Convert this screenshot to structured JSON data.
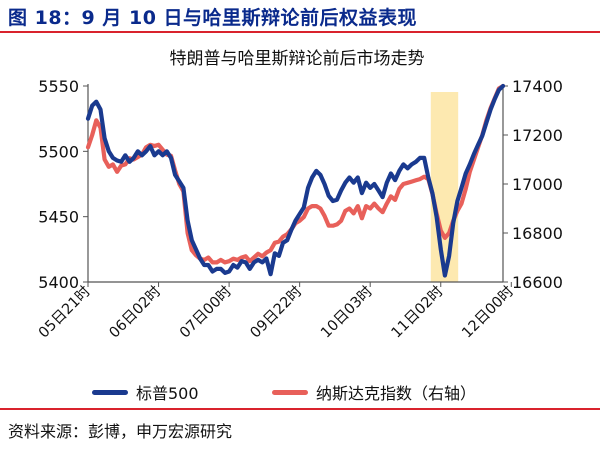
{
  "figure": {
    "title": "图 18：9 月 10 日与哈里斯辩论前后权益表现",
    "source": "资料来源：彭博，申万宏源研究"
  },
  "chart_data": {
    "type": "line",
    "title": "特朗普与哈里斯辩论前后市场走势",
    "x_tick_labels": [
      "05日21时",
      "06日02时",
      "07日00时",
      "09日22时",
      "10日03时",
      "11日02时",
      "12日00时"
    ],
    "x_range": [
      0,
      100
    ],
    "x_tick_positions": [
      0,
      17,
      34,
      51,
      68,
      85,
      102
    ],
    "y_left": {
      "ticks": [
        5400,
        5450,
        5500,
        5550
      ],
      "range": [
        5400,
        5550
      ]
    },
    "y_right": {
      "ticks": [
        16600,
        16800,
        17000,
        17200,
        17400
      ],
      "range": [
        16600,
        17400
      ]
    },
    "highlight_range": [
      82.6,
      89.2
    ],
    "legend_position": "bottom",
    "colors": {
      "sp500": "#1a3a8f",
      "nasdaq": "#e8605a",
      "highlight": "#fde9b0",
      "axis": "#555555",
      "text": "#0a2a8c",
      "rule": "#d9232d"
    },
    "series": [
      {
        "name": "标普500",
        "axis": "left",
        "points": [
          [
            0,
            5525
          ],
          [
            1,
            5535
          ],
          [
            2,
            5538
          ],
          [
            3,
            5532
          ],
          [
            4,
            5510
          ],
          [
            5,
            5500
          ],
          [
            6,
            5495
          ],
          [
            7,
            5493
          ],
          [
            8,
            5492
          ],
          [
            9,
            5497
          ],
          [
            10,
            5492
          ],
          [
            11,
            5495
          ],
          [
            12,
            5500
          ],
          [
            13,
            5497
          ],
          [
            14,
            5500
          ],
          [
            15,
            5504
          ],
          [
            16,
            5497
          ],
          [
            17,
            5500
          ],
          [
            18,
            5497
          ],
          [
            19,
            5500
          ],
          [
            20,
            5495
          ],
          [
            21,
            5482
          ],
          [
            22,
            5477
          ],
          [
            23,
            5472
          ],
          [
            24,
            5447
          ],
          [
            25,
            5432
          ],
          [
            26,
            5425
          ],
          [
            27,
            5418
          ],
          [
            28,
            5413
          ],
          [
            29,
            5413
          ],
          [
            30,
            5408
          ],
          [
            31,
            5410
          ],
          [
            32,
            5410
          ],
          [
            33,
            5407
          ],
          [
            34,
            5408
          ],
          [
            35,
            5413
          ],
          [
            36,
            5411
          ],
          [
            37,
            5416
          ],
          [
            38,
            5415
          ],
          [
            39,
            5410
          ],
          [
            40,
            5415
          ],
          [
            41,
            5417
          ],
          [
            42,
            5415
          ],
          [
            43,
            5418
          ],
          [
            44,
            5406
          ],
          [
            45,
            5422
          ],
          [
            46,
            5420
          ],
          [
            47,
            5430
          ],
          [
            48,
            5432
          ],
          [
            49,
            5440
          ],
          [
            50,
            5447
          ],
          [
            51,
            5452
          ],
          [
            52,
            5457
          ],
          [
            53,
            5472
          ],
          [
            54,
            5480
          ],
          [
            55,
            5485
          ],
          [
            56,
            5482
          ],
          [
            57,
            5475
          ],
          [
            58,
            5466
          ],
          [
            59,
            5462
          ],
          [
            60,
            5463
          ],
          [
            61,
            5470
          ],
          [
            62,
            5476
          ],
          [
            63,
            5480
          ],
          [
            64,
            5476
          ],
          [
            65,
            5480
          ],
          [
            66,
            5468
          ],
          [
            67,
            5476
          ],
          [
            68,
            5472
          ],
          [
            69,
            5475
          ],
          [
            70,
            5470
          ],
          [
            71,
            5465
          ],
          [
            72,
            5476
          ],
          [
            73,
            5483
          ],
          [
            74,
            5478
          ],
          [
            75,
            5485
          ],
          [
            76,
            5490
          ],
          [
            77,
            5487
          ],
          [
            78,
            5490
          ],
          [
            79,
            5492
          ],
          [
            80,
            5495
          ],
          [
            81,
            5495
          ],
          [
            82,
            5480
          ],
          [
            83,
            5468
          ],
          [
            84,
            5450
          ],
          [
            85,
            5425
          ],
          [
            86,
            5405
          ],
          [
            87,
            5420
          ],
          [
            88,
            5445
          ],
          [
            89,
            5462
          ],
          [
            90,
            5472
          ],
          [
            91,
            5483
          ],
          [
            92,
            5490
          ],
          [
            93,
            5498
          ],
          [
            94,
            5505
          ],
          [
            95,
            5512
          ],
          [
            96,
            5522
          ],
          [
            97,
            5532
          ],
          [
            98,
            5540
          ],
          [
            99,
            5547
          ],
          [
            100,
            5550
          ]
        ]
      },
      {
        "name": "纳斯达克指数（右轴）",
        "axis": "right",
        "points": [
          [
            0,
            17150
          ],
          [
            1,
            17200
          ],
          [
            2,
            17260
          ],
          [
            3,
            17230
          ],
          [
            4,
            17100
          ],
          [
            5,
            17070
          ],
          [
            6,
            17080
          ],
          [
            7,
            17050
          ],
          [
            8,
            17075
          ],
          [
            9,
            17080
          ],
          [
            10,
            17105
          ],
          [
            11,
            17100
          ],
          [
            12,
            17110
          ],
          [
            13,
            17120
          ],
          [
            14,
            17150
          ],
          [
            15,
            17160
          ],
          [
            16,
            17155
          ],
          [
            17,
            17160
          ],
          [
            18,
            17140
          ],
          [
            19,
            17120
          ],
          [
            20,
            17115
          ],
          [
            21,
            17055
          ],
          [
            22,
            17000
          ],
          [
            23,
            16970
          ],
          [
            24,
            16800
          ],
          [
            25,
            16730
          ],
          [
            26,
            16710
          ],
          [
            27,
            16695
          ],
          [
            28,
            16690
          ],
          [
            29,
            16700
          ],
          [
            30,
            16680
          ],
          [
            31,
            16680
          ],
          [
            32,
            16690
          ],
          [
            33,
            16680
          ],
          [
            34,
            16685
          ],
          [
            35,
            16695
          ],
          [
            36,
            16690
          ],
          [
            37,
            16700
          ],
          [
            38,
            16705
          ],
          [
            39,
            16685
          ],
          [
            40,
            16700
          ],
          [
            41,
            16715
          ],
          [
            42,
            16705
          ],
          [
            43,
            16720
          ],
          [
            44,
            16730
          ],
          [
            45,
            16760
          ],
          [
            46,
            16765
          ],
          [
            47,
            16785
          ],
          [
            48,
            16795
          ],
          [
            49,
            16815
          ],
          [
            50,
            16840
          ],
          [
            51,
            16850
          ],
          [
            52,
            16865
          ],
          [
            53,
            16900
          ],
          [
            54,
            16910
          ],
          [
            55,
            16910
          ],
          [
            56,
            16900
          ],
          [
            57,
            16870
          ],
          [
            58,
            16830
          ],
          [
            59,
            16830
          ],
          [
            60,
            16835
          ],
          [
            61,
            16850
          ],
          [
            62,
            16890
          ],
          [
            63,
            16900
          ],
          [
            64,
            16880
          ],
          [
            65,
            16910
          ],
          [
            66,
            16860
          ],
          [
            67,
            16910
          ],
          [
            68,
            16900
          ],
          [
            69,
            16920
          ],
          [
            70,
            16900
          ],
          [
            71,
            16885
          ],
          [
            72,
            16920
          ],
          [
            73,
            16950
          ],
          [
            74,
            16935
          ],
          [
            75,
            16980
          ],
          [
            76,
            17000
          ],
          [
            77,
            17005
          ],
          [
            78,
            17010
          ],
          [
            79,
            17015
          ],
          [
            80,
            17020
          ],
          [
            81,
            17030
          ],
          [
            82,
            17020
          ],
          [
            83,
            16960
          ],
          [
            84,
            16880
          ],
          [
            85,
            16810
          ],
          [
            86,
            16780
          ],
          [
            87,
            16800
          ],
          [
            88,
            16850
          ],
          [
            89,
            16890
          ],
          [
            90,
            16920
          ],
          [
            91,
            16980
          ],
          [
            92,
            17050
          ],
          [
            93,
            17100
          ],
          [
            94,
            17150
          ],
          [
            95,
            17200
          ],
          [
            96,
            17260
          ],
          [
            97,
            17310
          ],
          [
            98,
            17350
          ],
          [
            99,
            17390
          ],
          [
            100,
            17400
          ]
        ]
      }
    ]
  }
}
